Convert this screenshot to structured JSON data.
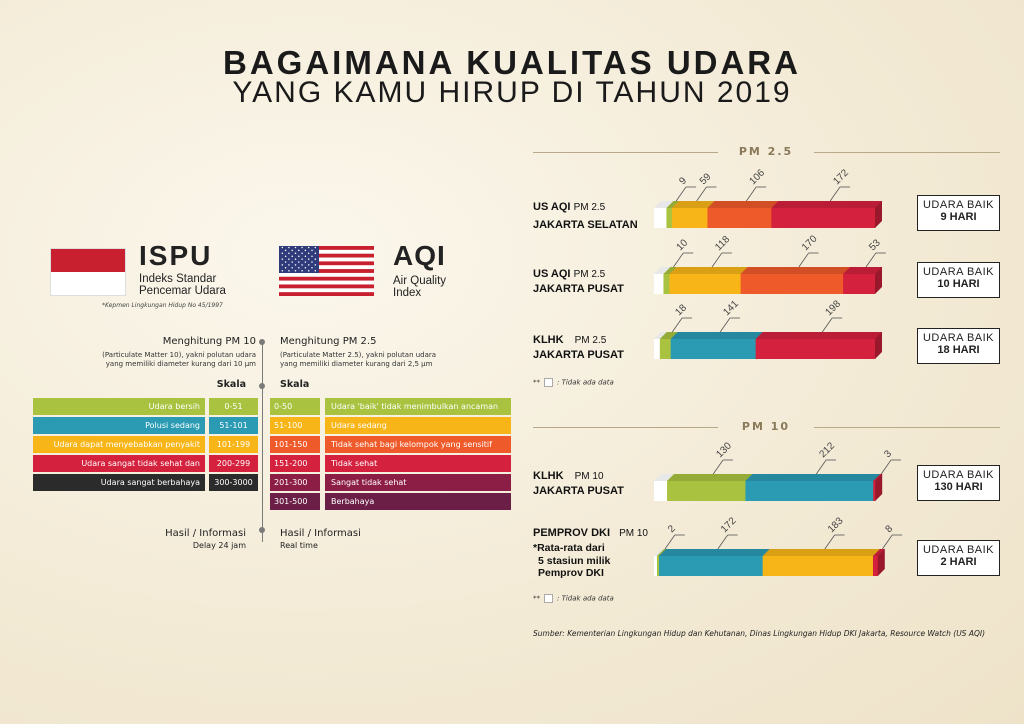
{
  "title": {
    "line1": "BAGAIMANA KUALITAS UDARA",
    "line2": "YANG KAMU HIRUP DI TAHUN 2019"
  },
  "ispu": {
    "name": "ISPU",
    "desc1": "Indeks Standar",
    "desc2": "Pencemar Udara",
    "note": "*Kepmen Lingkungan Hidup No 45/1997",
    "measure_title": "Menghitung PM 10",
    "measure_desc1": "(Particulate Matter 10), yakni polutan udara",
    "measure_desc2": "yang memiliki diameter kurang dari 10 µm",
    "scale_label": "Skala",
    "result_label": "Hasil / Informasi",
    "result_sub": "Delay 24 jam",
    "rows": [
      {
        "desc": "Udara bersih",
        "range": "0-51",
        "color": "#a9c23f"
      },
      {
        "desc": "Polusi sedang",
        "range": "51-101",
        "color": "#2a9bb3"
      },
      {
        "desc": "Udara dapat menyebabkan penyakit",
        "range": "101-199",
        "color": "#f7b518"
      },
      {
        "desc": "Udara sangat tidak sehat dan",
        "range": "200-299",
        "color": "#d4213d"
      },
      {
        "desc": "Udara sangat berbahaya",
        "range": "300-3000",
        "color": "#2b2b2b"
      }
    ]
  },
  "aqi": {
    "name": "AQI",
    "desc1": "Air Quality",
    "desc2": "Index",
    "measure_title": "Menghitung PM 2.5",
    "measure_desc1": "(Particulate Matter 2.5), yakni polutan udara",
    "measure_desc2": "yang memiliki diameter kurang dari 2,5 µm",
    "scale_label": "Skala",
    "result_label": "Hasil / Informasi",
    "result_sub": "Real time",
    "rows": [
      {
        "range": "0-50",
        "desc": "Udara 'baik' tidak menimbulkan ancaman",
        "color": "#a9c23f"
      },
      {
        "range": "51-100",
        "desc": "Udara sedang",
        "color": "#f7b518"
      },
      {
        "range": "101-150",
        "desc": "Tidak sehat bagi kelompok yang sensitif",
        "color": "#ef5a2b"
      },
      {
        "range": "151-200",
        "desc": "Tidak sehat",
        "color": "#d4213d"
      },
      {
        "range": "201-300",
        "desc": "Sangat tidak sehat",
        "color": "#8c1d45"
      },
      {
        "range": "301-500",
        "desc": "Berbahaya",
        "color": "#6b1f46"
      }
    ]
  },
  "pm25": {
    "section_title": "PM 2.5",
    "legend_text": ": Tidak ada data",
    "bars": [
      {
        "label_bold": "US AQI",
        "label_sub": "PM 2.5",
        "location": "JAKARTA SELATAN",
        "result1": "UDARA BAIK",
        "result2": "9 HARI",
        "segments": [
          {
            "value": 9,
            "color": "#a9c23f"
          },
          {
            "value": 59,
            "color": "#f7b518"
          },
          {
            "value": 106,
            "color": "#ef5a2b"
          },
          {
            "value": 172,
            "color": "#d4213d"
          }
        ]
      },
      {
        "label_bold": "US AQI",
        "label_sub": "PM 2.5",
        "location": "JAKARTA PUSAT",
        "result1": "UDARA BAIK",
        "result2": "10 HARI",
        "segments": [
          {
            "value": 10,
            "color": "#a9c23f"
          },
          {
            "value": 118,
            "color": "#f7b518"
          },
          {
            "value": 170,
            "color": "#ef5a2b"
          },
          {
            "value": 53,
            "color": "#d4213d"
          }
        ]
      },
      {
        "label_bold": "KLHK",
        "label_sub": "PM 2.5",
        "location": "JAKARTA PUSAT",
        "result1": "UDARA BAIK",
        "result2": "18 HARI",
        "segments": [
          {
            "value": 18,
            "color": "#a9c23f"
          },
          {
            "value": 141,
            "color": "#2a9bb3"
          },
          {
            "value": 198,
            "color": "#d4213d"
          }
        ]
      }
    ]
  },
  "pm10": {
    "section_title": "PM 10",
    "legend_text": ": Tidak ada data",
    "bars": [
      {
        "label_bold": "KLHK",
        "label_sub": "PM 10",
        "location": "JAKARTA PUSAT",
        "result1": "UDARA BAIK",
        "result2": "130 HARI",
        "segments": [
          {
            "value": 130,
            "color": "#a9c23f"
          },
          {
            "value": 212,
            "color": "#2a9bb3"
          },
          {
            "value": 3,
            "color": "#d4213d"
          }
        ]
      },
      {
        "label_bold": "PEMPROV DKI",
        "label_sub": "PM 10",
        "note1": "*Rata-rata dari",
        "note2": "5 stasiun milik",
        "note3": "Pemprov DKI",
        "result1": "UDARA BAIK",
        "result2": "2 HARI",
        "segments": [
          {
            "value": 2,
            "color": "#a9c23f"
          },
          {
            "value": 172,
            "color": "#2a9bb3"
          },
          {
            "value": 183,
            "color": "#f7b518"
          },
          {
            "value": 8,
            "color": "#d4213d"
          }
        ]
      }
    ]
  },
  "legend_marker": "**",
  "source": "Sumber: Kementerian Lingkungan Hidup dan Kehutanan, Dinas Lingkungan Hidup DKI Jakarta, Resource Watch (US AQI)"
}
